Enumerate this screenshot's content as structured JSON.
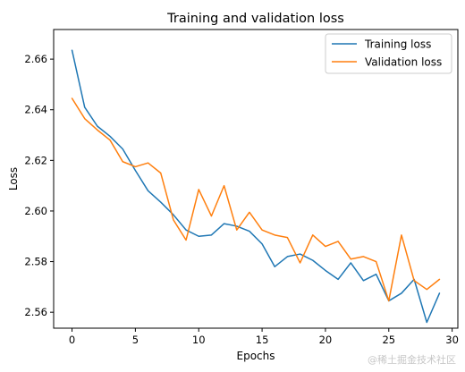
{
  "chart_data": {
    "type": "line",
    "title": "Training and validation loss",
    "xlabel": "Epochs",
    "ylabel": "Loss",
    "xlim": [
      -1.45,
      30.45
    ],
    "ylim": [
      2.5537,
      2.6717
    ],
    "x_ticks": [
      0,
      5,
      10,
      15,
      20,
      25,
      30
    ],
    "y_ticks": [
      2.56,
      2.58,
      2.6,
      2.62,
      2.64,
      2.66
    ],
    "y_tick_format": 2,
    "grid": false,
    "legend_position": "top-right",
    "x": [
      0,
      1,
      2,
      3,
      4,
      5,
      6,
      7,
      8,
      9,
      10,
      11,
      12,
      13,
      14,
      15,
      16,
      17,
      18,
      19,
      20,
      21,
      22,
      23,
      24,
      25,
      26,
      27,
      28,
      29
    ],
    "series": [
      {
        "name": "Training loss",
        "color": "#1f77b4",
        "values": [
          2.6635,
          2.641,
          2.6335,
          2.6295,
          2.6245,
          2.616,
          2.608,
          2.6035,
          2.5985,
          2.5925,
          2.59,
          2.5905,
          2.595,
          2.594,
          2.592,
          2.587,
          2.578,
          2.582,
          2.583,
          2.5805,
          2.5765,
          2.573,
          2.5795,
          2.5725,
          2.575,
          2.5645,
          2.5675,
          2.573,
          2.556,
          2.5675
        ]
      },
      {
        "name": "Validation loss",
        "color": "#ff7f0e",
        "values": [
          2.6445,
          2.6365,
          2.632,
          2.628,
          2.6195,
          2.6175,
          2.619,
          2.615,
          2.5965,
          2.5885,
          2.6085,
          2.598,
          2.61,
          2.5925,
          2.5995,
          2.5925,
          2.5905,
          2.5895,
          2.5795,
          2.5905,
          2.586,
          2.588,
          2.581,
          2.582,
          2.58,
          2.5645,
          2.5905,
          2.5725,
          2.569,
          2.573
        ]
      }
    ]
  },
  "watermark": "@稀土掘金技术社区"
}
